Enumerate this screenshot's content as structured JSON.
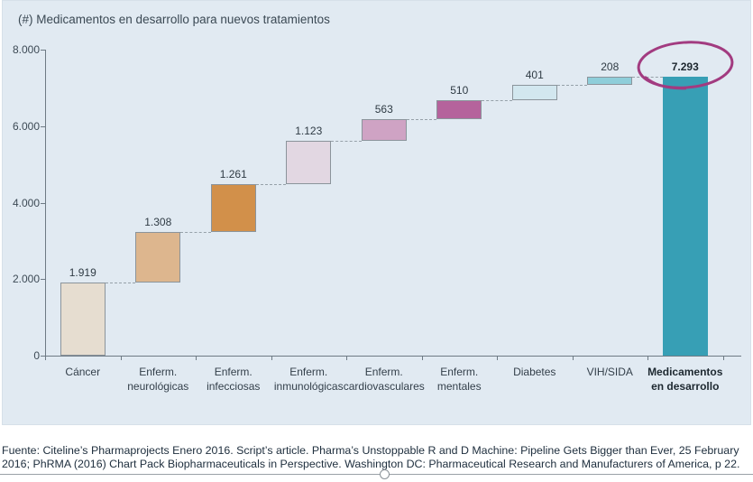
{
  "chart_panel": {
    "background": "#e1eaf2"
  },
  "chart_data": {
    "type": "bar",
    "subtype": "waterfall",
    "title": "(#) Medicamentos en desarrollo para nuevos tratamientos",
    "categories": [
      "Cáncer",
      "Enferm.\nneurológicas",
      "Enferm.\ninfecciosas",
      "Enferm.\ninmunológicas",
      "Enferm.\ncardiovasculares",
      "Enferm.\nmentales",
      "Diabetes",
      "VIH/SIDA",
      "Medicamentos\nen desarrollo"
    ],
    "values": [
      1919,
      1308,
      1261,
      1123,
      563,
      510,
      401,
      208,
      7293
    ],
    "value_labels": [
      "1.919",
      "1.308",
      "1.261",
      "1.123",
      "563",
      "510",
      "401",
      "208",
      "7.293"
    ],
    "total_index": 8,
    "bar_colors": [
      "#e6ddd0",
      "#ddb68e",
      "#d2904a",
      "#e2d7e2",
      "#cfa3c4",
      "#b5639c",
      "#d2e7ef",
      "#8fceda",
      "#379fb5"
    ],
    "bar_border_color": "#8b949b",
    "ylim": [
      0,
      8000
    ],
    "yticks": [
      {
        "value": 0,
        "label": "0"
      },
      {
        "value": 2000,
        "label": "2.000"
      },
      {
        "value": 4000,
        "label": "4.000"
      },
      {
        "value": 6000,
        "label": "6.000"
      },
      {
        "value": 8000,
        "label": "8.000"
      }
    ],
    "grid": false,
    "legend": false,
    "connector_style": "dashed",
    "annotation": {
      "type": "hand-drawn-ellipse",
      "circled_value": "7.293",
      "color": "#a23b80"
    }
  },
  "footer": {
    "line1": "Fuente: Citeline’s Pharmaprojects Enero 2016. Script’s article. Pharma’s Unstoppable R and D Machine: Pipeline Gets Bigger than Ever, 25 February",
    "line2": "2016; PhRMA (2016) Chart Pack Biopharmaceuticals in Perspective. Washington DC: Pharmaceutical Research and Manufacturers of America, p 22."
  },
  "selection": {
    "handle": "bottom-center-resize-handle"
  }
}
